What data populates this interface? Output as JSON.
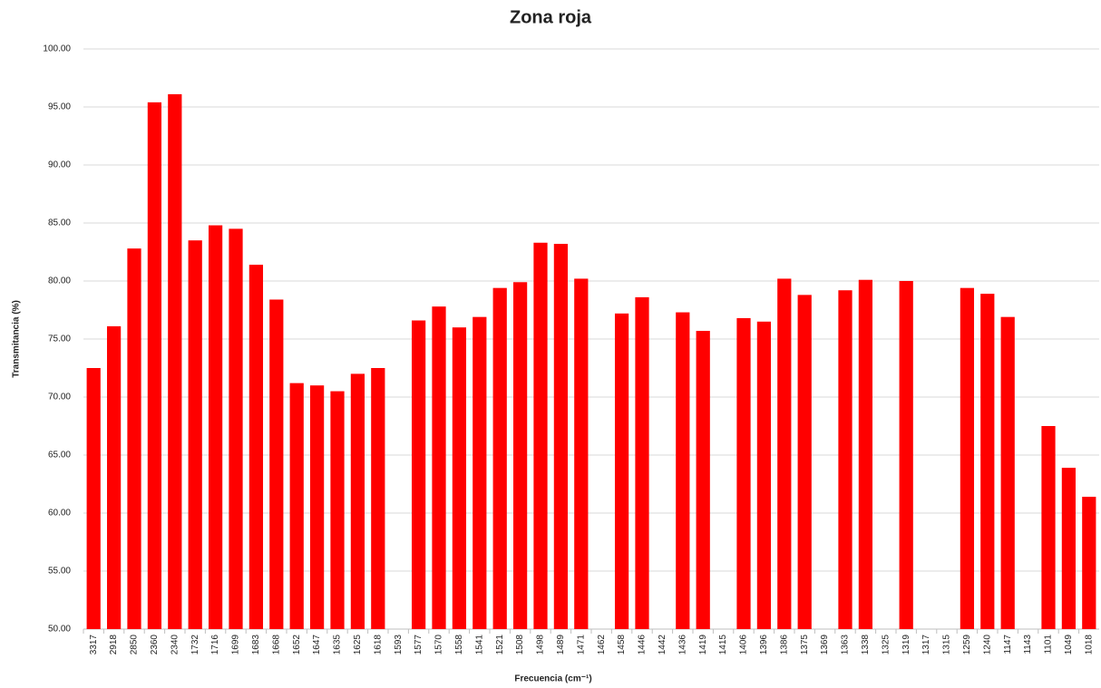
{
  "chart_data": {
    "type": "bar",
    "title": "Zona roja",
    "xlabel": "Frecuencia (cm⁻¹)",
    "ylabel": "Transmitancia (%)",
    "categories": [
      "3317",
      "2918",
      "2850",
      "2360",
      "2340",
      "1732",
      "1716",
      "1699",
      "1683",
      "1668",
      "1652",
      "1647",
      "1635",
      "1625",
      "1618",
      "1593",
      "1577",
      "1570",
      "1558",
      "1541",
      "1521",
      "1508",
      "1498",
      "1489",
      "1471",
      "1462",
      "1458",
      "1446",
      "1442",
      "1436",
      "1419",
      "1415",
      "1406",
      "1396",
      "1386",
      "1375",
      "1369",
      "1363",
      "1338",
      "1325",
      "1319",
      "1317",
      "1315",
      "1259",
      "1240",
      "1147",
      "1143",
      "1101",
      "1049",
      "1018"
    ],
    "values": [
      72.5,
      76.1,
      82.8,
      95.4,
      96.1,
      83.5,
      84.8,
      84.5,
      81.4,
      78.4,
      71.2,
      71.0,
      70.5,
      72.0,
      72.5,
      null,
      76.6,
      77.8,
      76.0,
      76.9,
      79.4,
      79.9,
      83.3,
      83.2,
      80.2,
      null,
      77.2,
      78.6,
      null,
      77.3,
      75.7,
      null,
      76.8,
      76.5,
      80.2,
      78.8,
      null,
      79.2,
      80.1,
      null,
      80.0,
      null,
      null,
      79.4,
      78.9,
      76.9,
      null,
      67.5,
      63.9,
      61.4
    ],
    "color": "#ff0000",
    "ylim": [
      50,
      100
    ],
    "yticks": [
      {
        "value": 50,
        "label": "50.00"
      },
      {
        "value": 55,
        "label": "55.00"
      },
      {
        "value": 60,
        "label": "60.00"
      },
      {
        "value": 65,
        "label": "65.00"
      },
      {
        "value": 70,
        "label": "70.00"
      },
      {
        "value": 75,
        "label": "75.00"
      },
      {
        "value": 80,
        "label": "80.00"
      },
      {
        "value": 85,
        "label": "85.00"
      },
      {
        "value": 90,
        "label": "90.00"
      },
      {
        "value": 95,
        "label": "95.00"
      },
      {
        "value": 100,
        "label": "100.00"
      }
    ],
    "grid": true
  }
}
